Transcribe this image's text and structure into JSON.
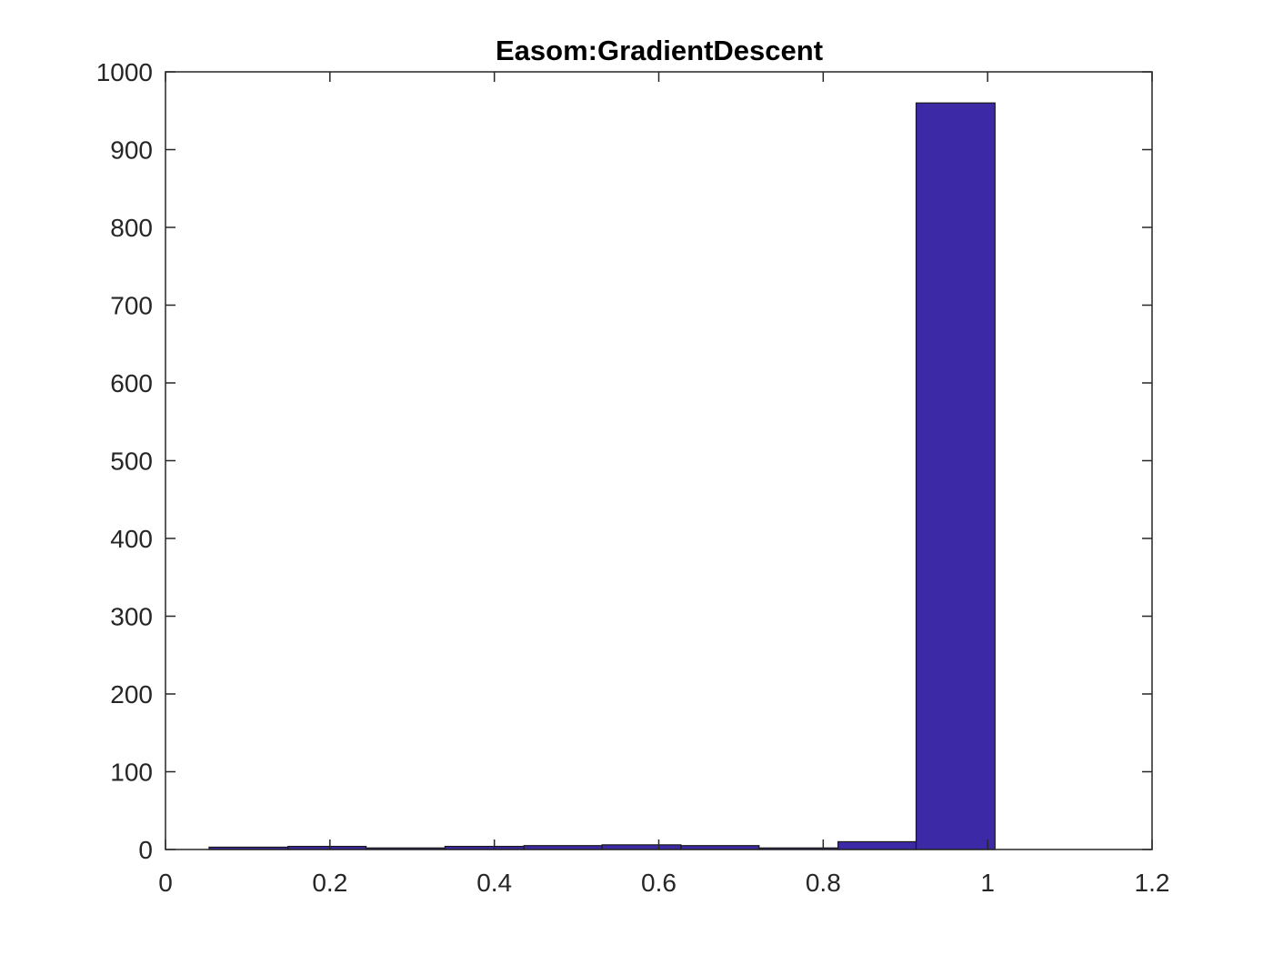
{
  "chart_data": {
    "type": "bar",
    "title": "Easom:GradientDescent",
    "xlabel": "",
    "ylabel": "",
    "xlim": [
      0,
      1.2
    ],
    "ylim": [
      0,
      1000
    ],
    "x_ticks": [
      "0",
      "0.2",
      "0.4",
      "0.6",
      "0.8",
      "1",
      "1.2"
    ],
    "y_ticks": [
      "0",
      "100",
      "200",
      "300",
      "400",
      "500",
      "600",
      "700",
      "800",
      "900",
      "1000"
    ],
    "grid": false,
    "bar_color": "#3B29A5",
    "bins": [
      {
        "start": 0.053,
        "end": 0.149,
        "value": 3
      },
      {
        "start": 0.149,
        "end": 0.244,
        "value": 4
      },
      {
        "start": 0.244,
        "end": 0.34,
        "value": 2
      },
      {
        "start": 0.34,
        "end": 0.436,
        "value": 4
      },
      {
        "start": 0.436,
        "end": 0.531,
        "value": 5
      },
      {
        "start": 0.531,
        "end": 0.627,
        "value": 6
      },
      {
        "start": 0.627,
        "end": 0.722,
        "value": 5
      },
      {
        "start": 0.722,
        "end": 0.818,
        "value": 2
      },
      {
        "start": 0.818,
        "end": 0.913,
        "value": 10
      },
      {
        "start": 0.913,
        "end": 1.009,
        "value": 960
      }
    ]
  }
}
